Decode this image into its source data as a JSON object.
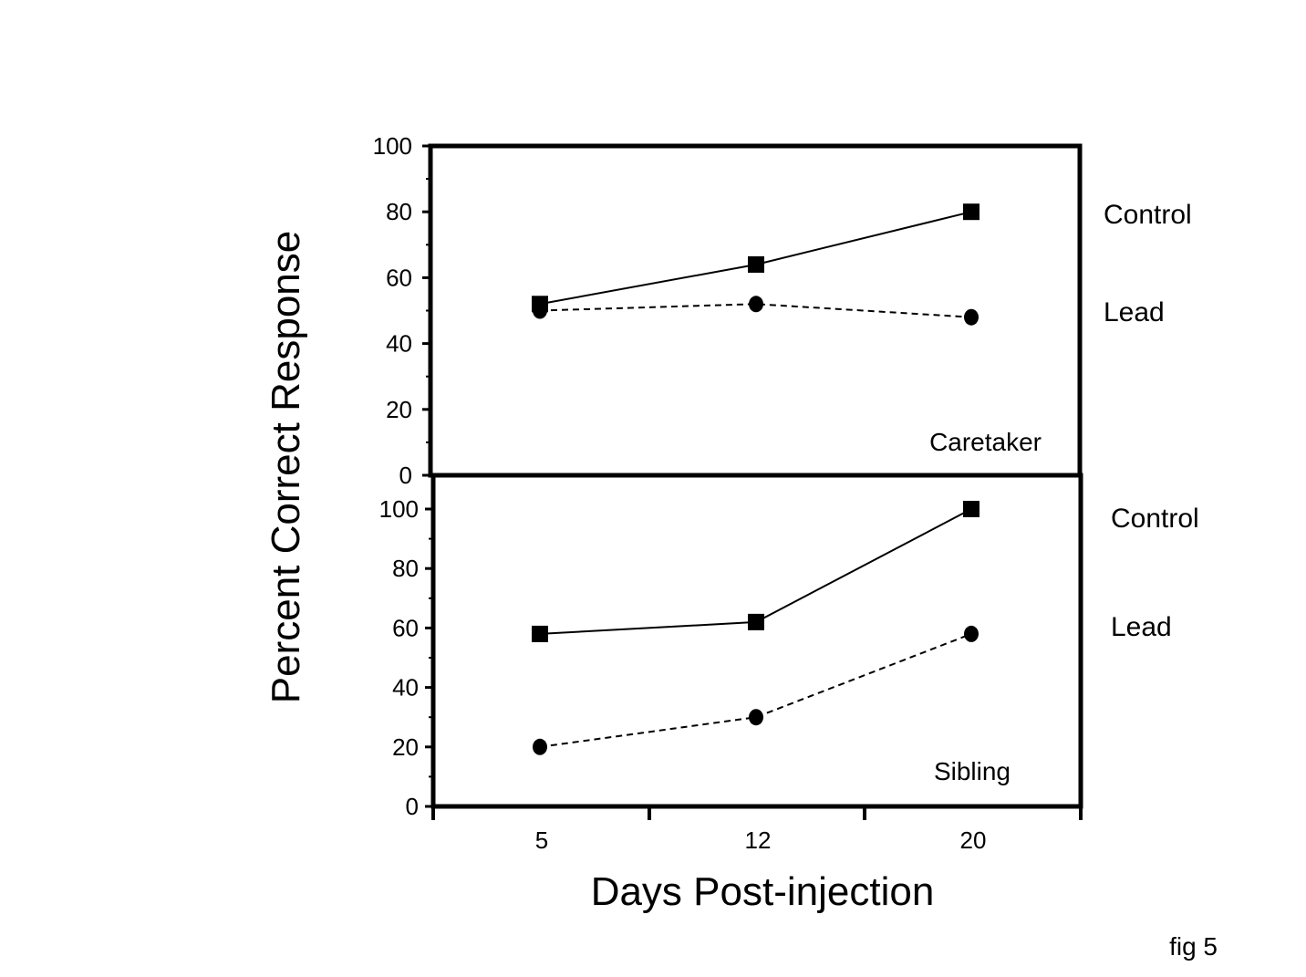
{
  "figure_label": "fig 5",
  "chart_data": [
    {
      "type": "line",
      "panel_label": "Caretaker",
      "x_categories": [
        "5",
        "12",
        "20"
      ],
      "ylim": [
        0,
        100
      ],
      "y_ticks": [
        "0",
        "20",
        "40",
        "60",
        "80",
        "100"
      ],
      "xlabel": "Days Post-injection",
      "ylabel": "Percent Correct Response",
      "series": [
        {
          "name": "Control",
          "values": [
            52,
            64,
            80
          ],
          "line_style": "solid",
          "marker": "square"
        },
        {
          "name": "Lead",
          "values": [
            50,
            52,
            48
          ],
          "line_style": "dashed",
          "marker": "circle"
        }
      ],
      "legend_position": "right",
      "grid": false
    },
    {
      "type": "line",
      "panel_label": "Sibling",
      "x_categories": [
        "5",
        "12",
        "20"
      ],
      "ylim": [
        0,
        100
      ],
      "y_ticks": [
        "0",
        "20",
        "40",
        "60",
        "80",
        "100"
      ],
      "xlabel": "Days Post-injection",
      "ylabel": "Percent Correct Response",
      "series": [
        {
          "name": "Control",
          "values": [
            58,
            62,
            100
          ],
          "line_style": "solid",
          "marker": "square"
        },
        {
          "name": "Lead",
          "values": [
            20,
            30,
            58
          ],
          "line_style": "dashed",
          "marker": "circle"
        }
      ],
      "legend_position": "right",
      "grid": false
    }
  ],
  "colors": {
    "ink": "#000000",
    "background": "#ffffff"
  }
}
